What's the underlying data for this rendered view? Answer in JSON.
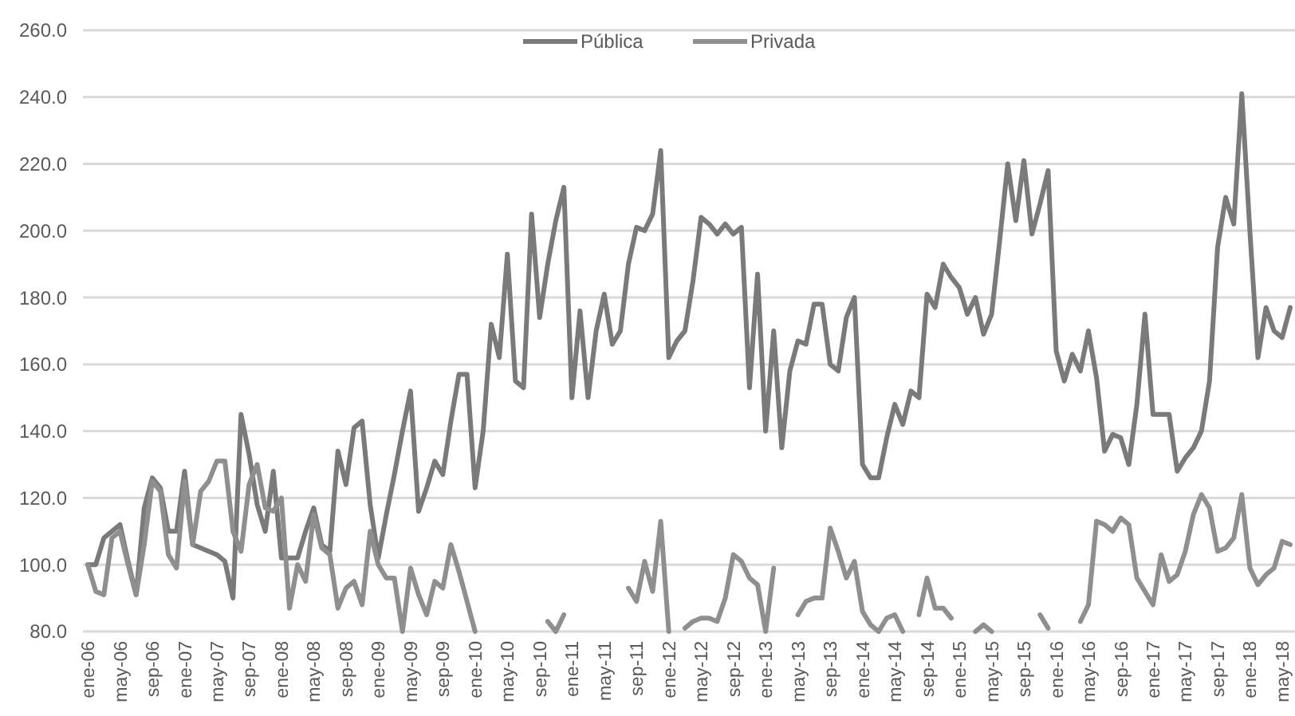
{
  "chart_data": {
    "type": "line",
    "categories": [
      "ene-06",
      null,
      null,
      null,
      "may-06",
      null,
      null,
      null,
      "sep-06",
      null,
      null,
      null,
      "ene-07",
      null,
      null,
      null,
      "may-07",
      null,
      null,
      null,
      "sep-07",
      null,
      null,
      null,
      "ene-08",
      null,
      null,
      null,
      "may-08",
      null,
      null,
      null,
      "sep-08",
      null,
      null,
      null,
      "ene-09",
      null,
      null,
      null,
      "may-09",
      null,
      null,
      null,
      "sep-09",
      null,
      null,
      null,
      "ene-10",
      null,
      null,
      null,
      "may-10",
      null,
      null,
      null,
      "sep-10",
      null,
      null,
      null,
      "ene-11",
      null,
      null,
      null,
      "may-11",
      null,
      null,
      null,
      "sep-11",
      null,
      null,
      null,
      "ene-12",
      null,
      null,
      null,
      "may-12",
      null,
      null,
      null,
      "sep-12",
      null,
      null,
      null,
      "ene-13",
      null,
      null,
      null,
      "may-13",
      null,
      null,
      null,
      "sep-13",
      null,
      null,
      null,
      "ene-14",
      null,
      null,
      null,
      "may-14",
      null,
      null,
      null,
      "sep-14",
      null,
      null,
      null,
      "ene-15",
      null,
      null,
      null,
      "may-15",
      null,
      null,
      null,
      "sep-15",
      null,
      null,
      null,
      "ene-16",
      null,
      null,
      null,
      "may-16",
      null,
      null,
      null,
      "sep-16",
      null,
      null,
      null,
      "ene-17",
      null,
      null,
      null,
      "may-17",
      null,
      null,
      null,
      "sep-17",
      null,
      null,
      null,
      "ene-18",
      null,
      null,
      null,
      "may-18",
      null
    ],
    "series": [
      {
        "name": "Pública",
        "color": "#7a7a7a",
        "values": [
          100,
          100,
          108,
          110,
          112,
          101,
          91,
          117,
          126,
          123,
          110,
          110,
          128,
          106,
          105,
          104,
          103,
          101,
          90,
          145,
          133,
          118,
          110,
          128,
          102,
          102,
          102,
          110,
          117,
          106,
          104,
          134,
          124,
          141,
          143,
          118,
          102,
          115,
          127,
          140,
          152,
          116,
          123,
          131,
          127,
          143,
          157,
          157,
          123,
          140,
          172,
          162,
          193,
          155,
          153,
          205,
          174,
          190,
          203,
          213,
          150,
          176,
          150,
          170,
          181,
          166,
          170,
          190,
          201,
          200,
          205,
          224,
          162,
          167,
          170,
          185,
          204,
          202,
          199,
          202,
          199,
          201,
          153,
          187,
          140,
          170,
          135,
          158,
          167,
          166,
          178,
          178,
          160,
          158,
          174,
          180,
          130,
          126,
          126,
          138,
          148,
          142,
          152,
          150,
          181,
          177,
          190,
          186,
          183,
          175,
          180,
          169,
          175,
          197,
          220,
          203,
          221,
          199,
          208,
          218,
          164,
          155,
          163,
          158,
          170,
          156,
          134,
          139,
          138,
          130,
          148,
          175,
          145,
          145,
          145,
          128,
          132,
          135,
          140,
          155,
          195,
          210,
          202,
          241,
          200,
          162,
          177,
          170,
          168,
          177
        ]
      },
      {
        "name": "Privada",
        "color": "#8f8f8f",
        "values": [
          100,
          92,
          91,
          108,
          110,
          100,
          91,
          106,
          125,
          122,
          103,
          99,
          125,
          106,
          122,
          125,
          131,
          131,
          110,
          104,
          124,
          130,
          117,
          116,
          120,
          87,
          100,
          95,
          115,
          105,
          103,
          87,
          93,
          95,
          88,
          110,
          100,
          96,
          96,
          80,
          99,
          91,
          85,
          95,
          93,
          106,
          98,
          89,
          80,
          null,
          null,
          null,
          null,
          null,
          null,
          null,
          null,
          83,
          80,
          85,
          null,
          null,
          null,
          null,
          null,
          null,
          null,
          93,
          89,
          101,
          92,
          113,
          80,
          null,
          81,
          83,
          84,
          84,
          83,
          90,
          103,
          101,
          96,
          94,
          80,
          99,
          null,
          null,
          85,
          89,
          90,
          90,
          111,
          104,
          96,
          101,
          86,
          82,
          80,
          84,
          85,
          80,
          null,
          85,
          96,
          87,
          87,
          84,
          null,
          null,
          80,
          82,
          80,
          null,
          null,
          null,
          null,
          null,
          85,
          81,
          null,
          null,
          null,
          83,
          88,
          113,
          112,
          110,
          114,
          112,
          96,
          92,
          88,
          103,
          95,
          97,
          104,
          115,
          121,
          117,
          104,
          105,
          108,
          121,
          99,
          94,
          97,
          99,
          107,
          106
        ]
      }
    ],
    "ylim": [
      80,
      260
    ],
    "yticks": [
      {
        "value": 80,
        "label": "80.0"
      },
      {
        "value": 100,
        "label": "100.0"
      },
      {
        "value": 120,
        "label": "120.0"
      },
      {
        "value": 140,
        "label": "140.0"
      },
      {
        "value": 160,
        "label": "160.0"
      },
      {
        "value": 180,
        "label": "180.0"
      },
      {
        "value": 200,
        "label": "200.0"
      },
      {
        "value": 220,
        "label": "220.0"
      },
      {
        "value": 240,
        "label": "240.0"
      },
      {
        "value": 260,
        "label": "260.0"
      }
    ],
    "grid": "y",
    "legend": "top",
    "marker": "none",
    "line_style": "solid"
  }
}
